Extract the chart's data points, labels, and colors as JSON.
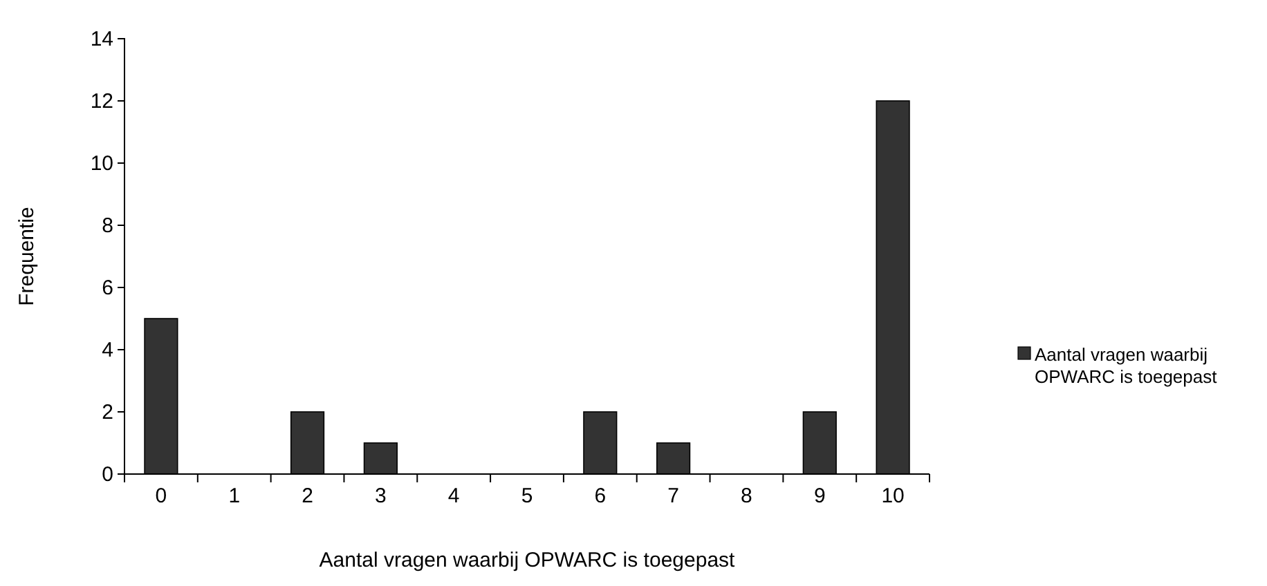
{
  "chart_data": {
    "type": "bar",
    "xlabel": "Aantal vragen waarbij OPWARC is toegepast",
    "ylabel": "Frequentie",
    "categories": [
      "0",
      "1",
      "2",
      "3",
      "4",
      "5",
      "6",
      "7",
      "8",
      "9",
      "10"
    ],
    "series": [
      {
        "name": "Aantal vragen waarbij OPWARC is toegepast",
        "color": "#333333",
        "values": [
          5,
          0,
          2,
          1,
          0,
          0,
          2,
          1,
          0,
          2,
          12
        ]
      }
    ],
    "ylim": [
      0,
      14
    ],
    "yticks": [
      0,
      2,
      4,
      6,
      8,
      10,
      12,
      14
    ],
    "grid": false,
    "legend": "right"
  }
}
